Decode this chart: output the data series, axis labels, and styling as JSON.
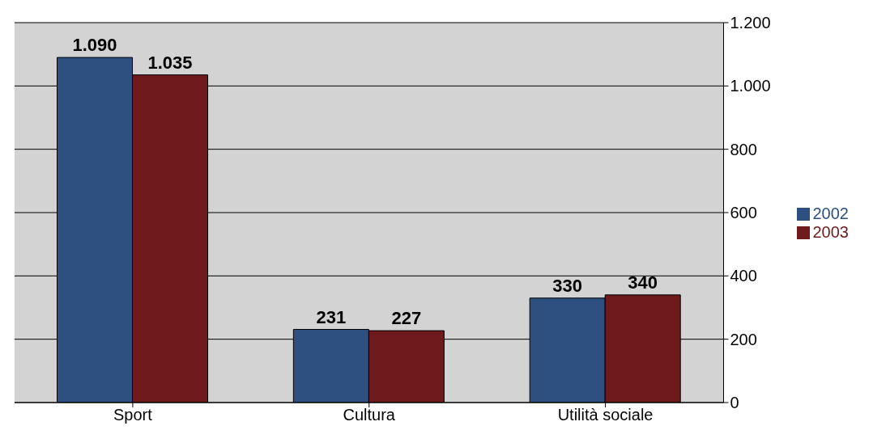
{
  "chart_data": {
    "type": "bar",
    "categories": [
      "Sport",
      "Cultura",
      "Utilità sociale"
    ],
    "series": [
      {
        "name": "2002",
        "color": "#2e5080",
        "values": [
          1090,
          231,
          330
        ],
        "value_labels": [
          "1.090",
          "231",
          "330"
        ]
      },
      {
        "name": "2003",
        "color": "#6e1a1c",
        "values": [
          1035,
          227,
          340
        ],
        "value_labels": [
          "1.035",
          "227",
          "340"
        ]
      }
    ],
    "ylim": [
      0,
      1200
    ],
    "yticks": [
      0,
      200,
      400,
      600,
      800,
      {
        "value": 1000,
        "label": "1.000"
      },
      {
        "value": 1200,
        "label": "1.200"
      }
    ],
    "grid": "y",
    "legend": "right"
  }
}
